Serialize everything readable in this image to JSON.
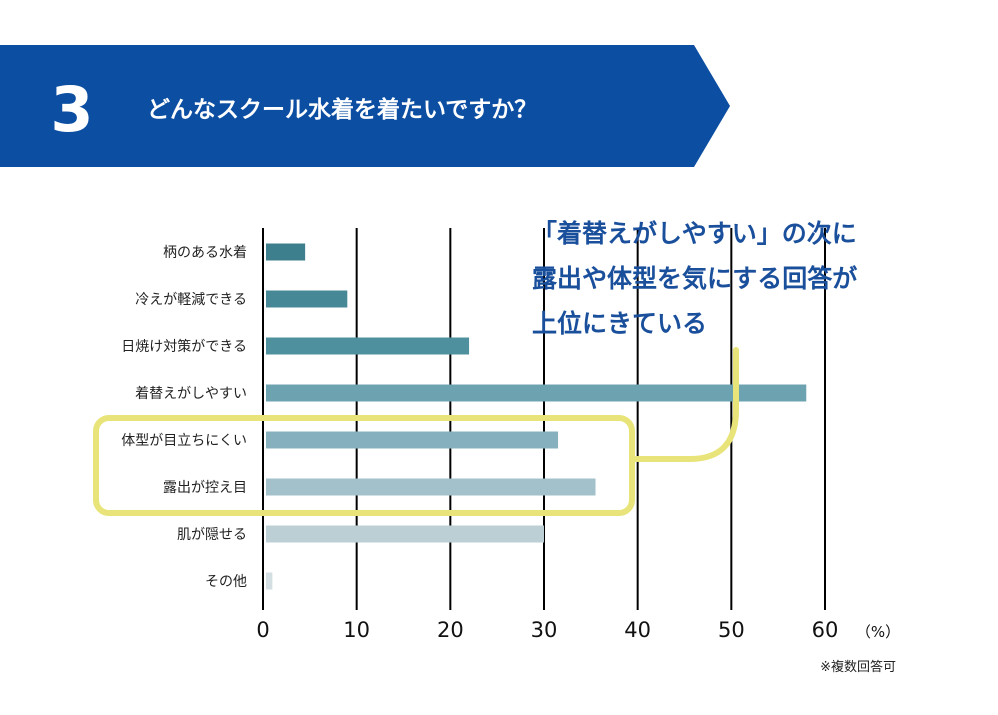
{
  "header": {
    "number": "3",
    "question": "どんなスクール水着を着たいですか？",
    "banner_color": "#0b4ea2"
  },
  "callout": {
    "lines": [
      "「着替えがしやすい」の次に",
      "露出や体型を気にする回答が",
      "上位にきている"
    ],
    "text_color": "#1a4f9c",
    "highlight_color": "#e8e47a"
  },
  "chart_data": {
    "type": "bar",
    "orientation": "horizontal",
    "categories": [
      "柄のある水着",
      "冷えが軽減できる",
      "日焼け対策ができる",
      "着替えがしやすい",
      "体型が目立ちにくい",
      "露出が控え目",
      "肌が隠せる",
      "その他"
    ],
    "values": [
      4.5,
      9,
      22,
      58,
      31.5,
      35.5,
      30,
      1
    ],
    "colors": [
      "#3d7f8c",
      "#468896",
      "#4f909e",
      "#6da3b1",
      "#87b0bf",
      "#a2c1cb",
      "#bccfd5",
      "#d3dfe3"
    ],
    "xlim": [
      0,
      60
    ],
    "xticks": [
      "0",
      "10",
      "20",
      "30",
      "40",
      "50",
      "60"
    ],
    "xunit": "（%）",
    "grid": true,
    "highlighted_categories": [
      "体型が目立ちにくい",
      "露出が控え目"
    ]
  },
  "footnote": "※複数回答可"
}
